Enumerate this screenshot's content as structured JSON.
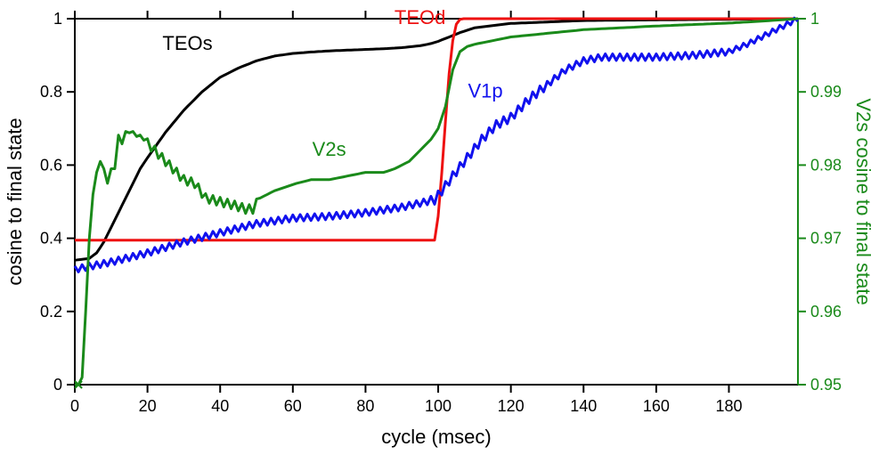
{
  "chart_data": {
    "type": "line",
    "x_axis": {
      "label": "cycle (msec)",
      "range": [
        0,
        199
      ],
      "ticks": [
        0,
        20,
        40,
        60,
        80,
        100,
        120,
        140,
        160,
        180
      ],
      "tick_labels": [
        "0",
        "20",
        "40",
        "60",
        "80",
        "100",
        "120",
        "140",
        "160",
        "180"
      ]
    },
    "y_axis_left": {
      "label": "cosine to final state",
      "range": [
        0,
        1
      ],
      "ticks": [
        0,
        0.2,
        0.4,
        0.6,
        0.8,
        1
      ],
      "tick_labels": [
        "0",
        "0.2",
        "0.4",
        "0.6",
        "0.8",
        "1"
      ]
    },
    "y_axis_right": {
      "label": "V2s cosine to final state",
      "range": [
        0.95,
        1
      ],
      "ticks": [
        0.95,
        0.96,
        0.97,
        0.98,
        0.99,
        1
      ],
      "tick_labels": [
        "0.95",
        "0.96",
        "0.97",
        "0.98",
        "0.99",
        "1"
      ],
      "color": "#1a8a1a"
    },
    "series": [
      {
        "name": "TEOs",
        "axis": "left",
        "color": "#000000",
        "x": [
          0,
          4,
          6,
          8,
          10,
          12,
          15,
          18,
          20,
          25,
          30,
          35,
          40,
          45,
          50,
          55,
          60,
          65,
          70,
          75,
          80,
          85,
          90,
          95,
          98,
          100,
          103,
          106,
          110,
          120,
          140,
          199
        ],
        "y": [
          0.34,
          0.345,
          0.36,
          0.39,
          0.43,
          0.47,
          0.53,
          0.59,
          0.62,
          0.69,
          0.75,
          0.8,
          0.84,
          0.865,
          0.885,
          0.898,
          0.905,
          0.909,
          0.912,
          0.914,
          0.916,
          0.918,
          0.921,
          0.926,
          0.932,
          0.938,
          0.95,
          0.962,
          0.975,
          0.987,
          0.995,
          1.0
        ]
      },
      {
        "name": "TEOd",
        "axis": "left",
        "color": "#ee1111",
        "x": [
          0,
          99,
          100,
          101,
          102,
          103,
          104,
          105,
          106,
          107,
          199
        ],
        "y": [
          0.395,
          0.395,
          0.46,
          0.58,
          0.72,
          0.85,
          0.94,
          0.985,
          0.998,
          1.0,
          1.0
        ]
      },
      {
        "name": "V1p",
        "axis": "left",
        "color": "#1111ee",
        "x": [
          0,
          10,
          20,
          30,
          40,
          50,
          60,
          70,
          80,
          90,
          99,
          101,
          104,
          108,
          112,
          116,
          120,
          125,
          130,
          135,
          140,
          145,
          150,
          160,
          170,
          175,
          180,
          185,
          190,
          195,
          199
        ],
        "y": [
          0.315,
          0.335,
          0.36,
          0.39,
          0.415,
          0.44,
          0.455,
          0.46,
          0.47,
          0.485,
          0.505,
          0.53,
          0.57,
          0.62,
          0.67,
          0.71,
          0.73,
          0.78,
          0.82,
          0.86,
          0.885,
          0.895,
          0.895,
          0.895,
          0.9,
          0.905,
          0.91,
          0.93,
          0.955,
          0.98,
          1.0
        ]
      },
      {
        "name": "V2s",
        "axis": "right",
        "color": "#1a8a1a",
        "x": [
          0,
          1,
          2,
          3,
          4,
          5,
          6,
          7,
          8,
          9,
          10,
          11,
          12,
          13,
          14,
          15,
          16,
          17,
          18,
          19,
          20,
          22,
          25,
          28,
          30,
          33,
          36,
          40,
          44,
          47,
          49,
          51,
          53,
          55,
          58,
          61,
          65,
          70,
          75,
          80,
          85,
          88,
          90,
          92,
          94,
          96,
          98,
          100,
          102,
          104,
          106,
          108,
          110,
          115,
          120,
          130,
          140,
          160,
          180,
          190,
          199
        ],
        "y": [
          0.95,
          0.95,
          0.951,
          0.96,
          0.97,
          0.976,
          0.979,
          0.9805,
          0.9795,
          0.9775,
          0.9795,
          0.9795,
          0.9835,
          0.9835,
          0.984,
          0.985,
          0.984,
          0.9845,
          0.9835,
          0.984,
          0.983,
          0.982,
          0.9805,
          0.979,
          0.978,
          0.9775,
          0.9755,
          0.975,
          0.9745,
          0.974,
          0.974,
          0.9755,
          0.976,
          0.9765,
          0.977,
          0.9775,
          0.978,
          0.978,
          0.9785,
          0.979,
          0.979,
          0.9795,
          0.98,
          0.9805,
          0.9815,
          0.9825,
          0.9835,
          0.985,
          0.988,
          0.993,
          0.9955,
          0.9962,
          0.9965,
          0.997,
          0.9975,
          0.998,
          0.9985,
          0.999,
          0.9994,
          0.9997,
          1.0
        ]
      }
    ],
    "annotations": [
      {
        "text": "TEOs",
        "x": 31,
        "y": 0.915,
        "axis": "left",
        "color": "#000000"
      },
      {
        "text": "TEOd",
        "x": 95,
        "y": 0.985,
        "axis": "left",
        "color": "#ee1111"
      },
      {
        "text": "V1p",
        "x": 113,
        "y": 0.785,
        "axis": "left",
        "color": "#1111ee"
      },
      {
        "text": "V2s",
        "x": 70,
        "y": 0.6255,
        "axis": "left",
        "color": "#1a8a1a"
      }
    ],
    "grid": false,
    "legend": "none"
  }
}
